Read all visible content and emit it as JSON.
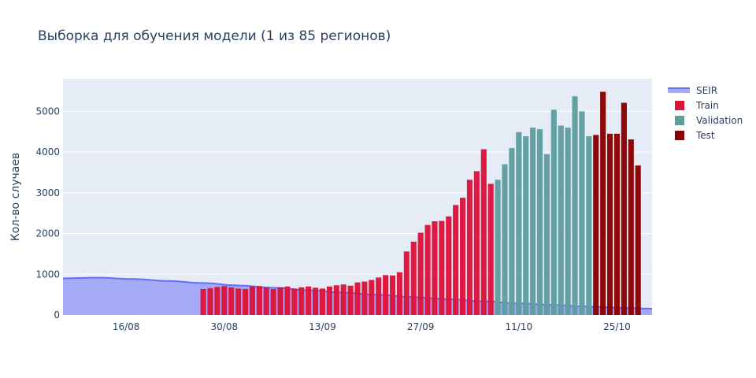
{
  "chart_data": {
    "type": "bar",
    "title": "Выборка для обучения модели (1 из 85 регионов)",
    "xlabel": "",
    "ylabel": "Кол-во случаев",
    "ylim": [
      0,
      5800
    ],
    "yticks": [
      0,
      1000,
      2000,
      3000,
      4000,
      5000
    ],
    "x_start": "2020-08-07",
    "x_end": "2020-10-30",
    "xticks": [
      {
        "date": "2020-08-16",
        "label": "16/08"
      },
      {
        "date": "2020-08-30",
        "label": "30/08"
      },
      {
        "date": "2020-09-13",
        "label": "13/09"
      },
      {
        "date": "2020-09-27",
        "label": "27/09"
      },
      {
        "date": "2020-10-11",
        "label": "11/10"
      },
      {
        "date": "2020-10-25",
        "label": "25/10"
      }
    ],
    "grid": true,
    "legend_position": "top-right",
    "legend": [
      "SEIR",
      "Train",
      "Validation",
      "Test"
    ],
    "colors": {
      "seir_line": "#636efa",
      "seir_fill": "#a4aaf5",
      "train": "#dc143c",
      "validation": "#5f9ea0",
      "test": "#8b0000",
      "plot_bg": "#e5ecf6",
      "grid": "#ffffff",
      "text": "#2a3f5f"
    },
    "series": [
      {
        "name": "SEIR",
        "kind": "area",
        "dates": [
          "2020-08-07",
          "2020-08-12",
          "2020-08-17",
          "2020-08-22",
          "2020-08-27",
          "2020-09-01",
          "2020-09-06",
          "2020-09-11",
          "2020-09-16",
          "2020-09-21",
          "2020-09-26",
          "2020-10-01",
          "2020-10-06",
          "2020-10-11",
          "2020-10-16",
          "2020-10-21",
          "2020-10-26",
          "2020-10-30"
        ],
        "values": [
          900,
          915,
          885,
          835,
          785,
          725,
          670,
          610,
          550,
          495,
          440,
          390,
          335,
          285,
          245,
          205,
          175,
          155
        ]
      },
      {
        "name": "Train",
        "start": "2020-08-27",
        "values": [
          640,
          660,
          690,
          710,
          680,
          650,
          640,
          700,
          710,
          680,
          640,
          680,
          700,
          650,
          680,
          700,
          670,
          650,
          700,
          730,
          750,
          720,
          800,
          820,
          860,
          920,
          980,
          970,
          1050,
          1560,
          1800,
          2020,
          2210,
          2300,
          2310,
          2420,
          2700,
          2880,
          3320,
          3530,
          4070,
          3220
        ]
      },
      {
        "name": "Validation",
        "start": "2020-10-08",
        "values": [
          3320,
          3700,
          4100,
          4490,
          4390,
          4600,
          4560,
          3950,
          5040,
          4650,
          4600,
          5370,
          5000,
          4390
        ]
      },
      {
        "name": "Test",
        "start": "2020-10-22",
        "values": [
          4420,
          5480,
          4450,
          4450,
          5210,
          4310,
          3670
        ]
      }
    ]
  }
}
